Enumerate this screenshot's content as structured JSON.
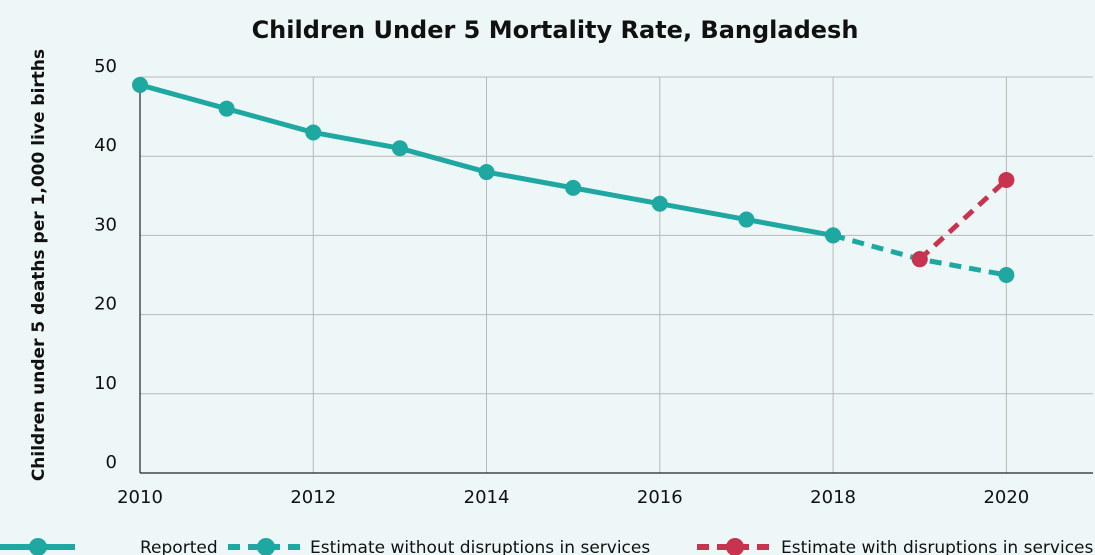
{
  "colors": {
    "teal": "#1fa8a1",
    "crimson": "#c8334f",
    "grid": "#b8b8b8",
    "background": "#eef7f7"
  },
  "chart_data": {
    "type": "line",
    "title": "Children Under 5 Mortality Rate, Bangladesh",
    "xlabel": "",
    "ylabel": "Children under 5 deaths per 1,000 live births",
    "xlim": [
      2010,
      2021
    ],
    "ylim": [
      0,
      50
    ],
    "x_ticks": [
      "2010",
      "2012",
      "2014",
      "2016",
      "2018",
      "2020"
    ],
    "y_ticks": [
      "0",
      "10",
      "20",
      "30",
      "40",
      "50"
    ],
    "grid": true,
    "legend_position": "bottom",
    "series": [
      {
        "name": "Reported",
        "style": "solid",
        "color": "#1fa8a1",
        "x": [
          2010,
          2011,
          2012,
          2013,
          2014,
          2015,
          2016,
          2017,
          2018
        ],
        "y": [
          49,
          46,
          43,
          41,
          38,
          36,
          34,
          32,
          30
        ]
      },
      {
        "name": "Estimate without disruptions in services",
        "style": "dashed",
        "color": "#1fa8a1",
        "x": [
          2018,
          2019,
          2020
        ],
        "y": [
          30,
          27,
          25
        ]
      },
      {
        "name": "Estimate with disruptions in services",
        "style": "dashed",
        "color": "#c8334f",
        "x": [
          2019,
          2020
        ],
        "y": [
          27,
          37
        ]
      }
    ]
  }
}
